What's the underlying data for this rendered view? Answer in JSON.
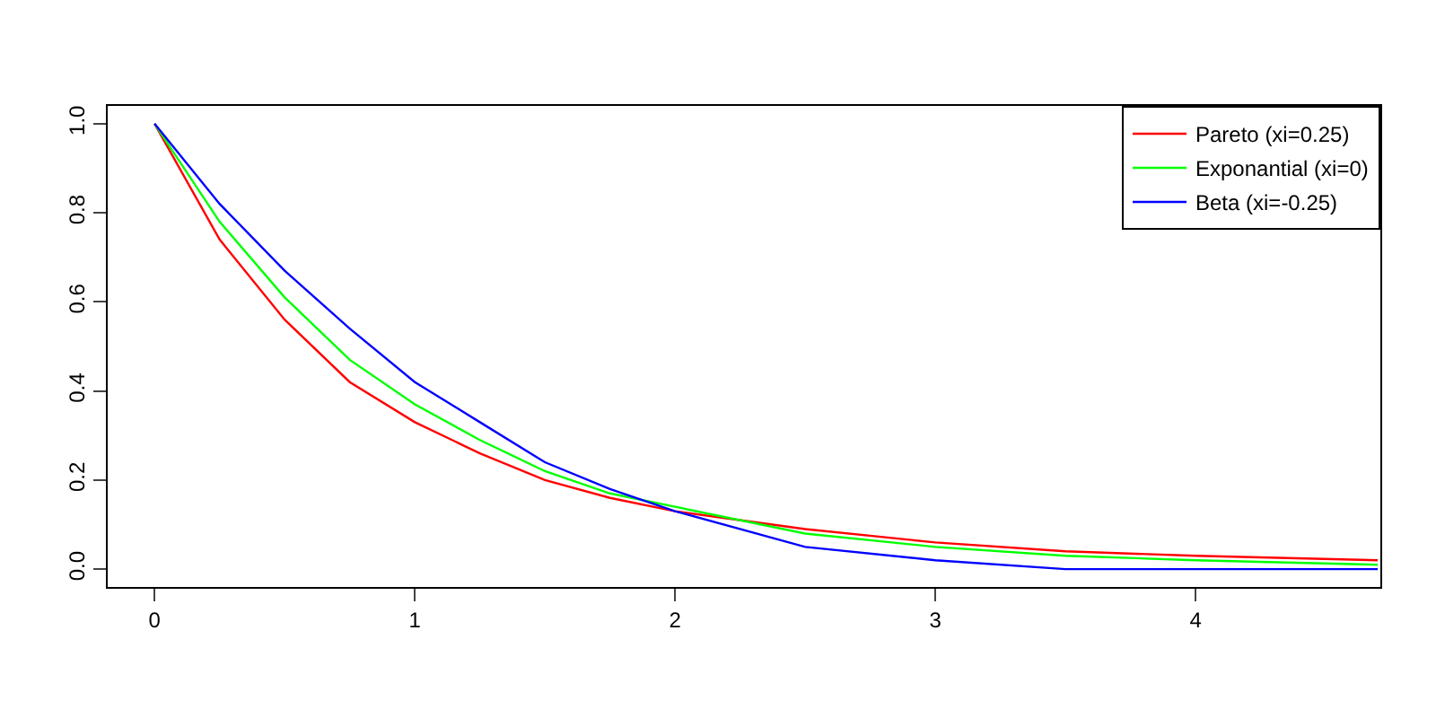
{
  "chart_data": {
    "type": "line",
    "x": [
      0,
      0.25,
      0.5,
      0.75,
      1,
      1.25,
      1.5,
      1.75,
      2,
      2.5,
      3,
      3.5,
      4,
      4.7
    ],
    "series": [
      {
        "name": "Pareto (xi=0.25)",
        "color": "#ff0000",
        "values": [
          1,
          0.74,
          0.56,
          0.42,
          0.33,
          0.26,
          0.2,
          0.16,
          0.13,
          0.09,
          0.06,
          0.04,
          0.03,
          0.02
        ]
      },
      {
        "name": "Exponantial (xi=0)",
        "color": "#00ff00",
        "values": [
          1,
          0.78,
          0.61,
          0.47,
          0.37,
          0.29,
          0.22,
          0.17,
          0.14,
          0.08,
          0.05,
          0.03,
          0.02,
          0.01
        ]
      },
      {
        "name": "Beta (xi=-0.25)",
        "color": "#0000ff",
        "values": [
          1,
          0.82,
          0.67,
          0.54,
          0.42,
          0.33,
          0.24,
          0.18,
          0.13,
          0.05,
          0.02,
          0,
          0,
          0
        ]
      }
    ],
    "xlim": [
      -0.18,
      4.71
    ],
    "ylim": [
      -0.04,
      1.04
    ],
    "xticks": [
      0,
      1,
      2,
      3,
      4
    ],
    "yticks": [
      {
        "value": 0,
        "label": "0.0"
      },
      0.2,
      0.4,
      0.6,
      0.8,
      {
        "value": 1,
        "label": "1.0"
      }
    ],
    "grid": false,
    "legend": "top right",
    "marker": "none",
    "line_style": "solid"
  }
}
